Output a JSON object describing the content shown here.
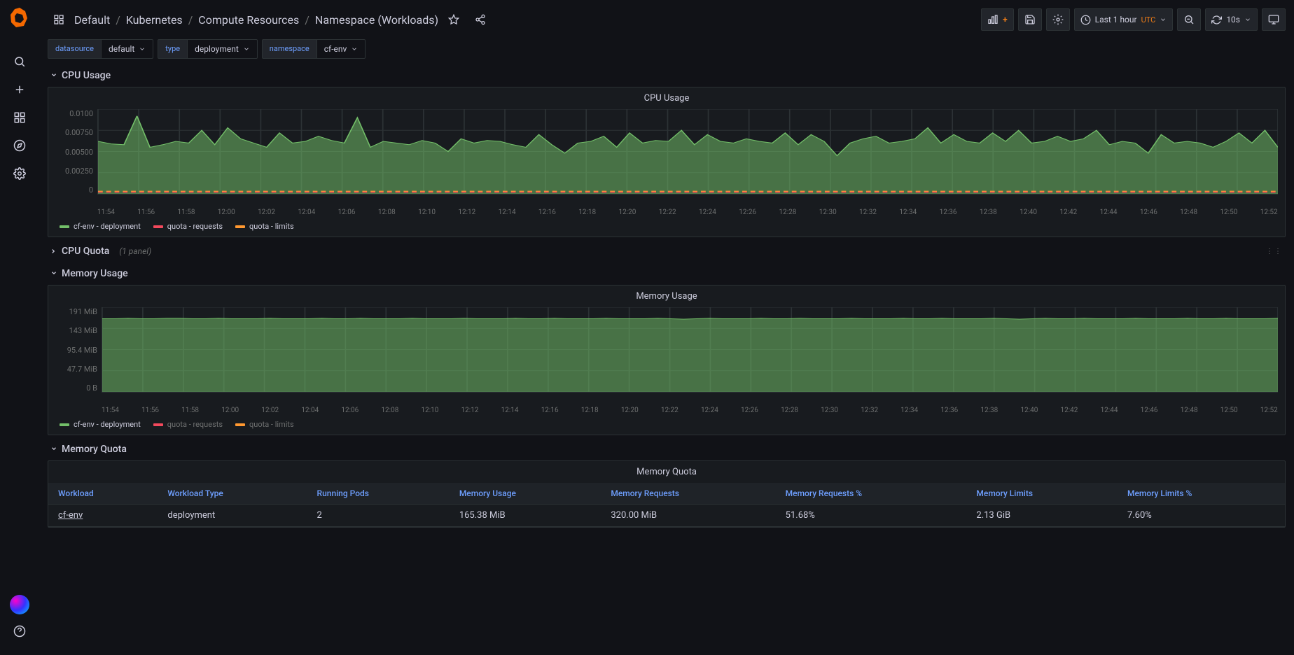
{
  "colors": {
    "background": "#111217",
    "panel_bg": "#181b1f",
    "border": "#2c3235",
    "text": "#ccccdc",
    "text_muted": "#6e7070",
    "link": "#6e9fff",
    "accent_orange": "#eb7b18",
    "series_green": "#73bf69",
    "series_green_fill": "#73bf6988",
    "series_red": "#f2495c",
    "series_orange": "#ff9830"
  },
  "breadcrumb": {
    "parts": [
      "Default",
      "Kubernetes",
      "Compute Resources",
      "Namespace (Workloads)"
    ]
  },
  "toolbar": {
    "time_range": "Last 1 hour",
    "time_zone": "UTC",
    "refresh_interval": "10s"
  },
  "variables": [
    {
      "label": "datasource",
      "value": "default"
    },
    {
      "label": "type",
      "value": "deployment"
    },
    {
      "label": "namespace",
      "value": "cf-env"
    }
  ],
  "sections": {
    "cpu_usage": {
      "title": "CPU Usage",
      "expanded": true
    },
    "cpu_quota": {
      "title": "CPU Quota",
      "expanded": false,
      "meta": "(1 panel)"
    },
    "memory_usage": {
      "title": "Memory Usage",
      "expanded": true
    },
    "memory_quota": {
      "title": "Memory Quota",
      "expanded": true
    }
  },
  "cpu_chart": {
    "title": "CPU Usage",
    "type": "area",
    "y_ticks": [
      "0.0100",
      "0.00750",
      "0.00500",
      "0.00250",
      "0"
    ],
    "ylim": [
      0,
      0.01
    ],
    "x_ticks": [
      "11:54",
      "11:56",
      "11:58",
      "12:00",
      "12:02",
      "12:04",
      "12:06",
      "12:08",
      "12:10",
      "12:12",
      "12:14",
      "12:16",
      "12:18",
      "12:20",
      "12:22",
      "12:24",
      "12:26",
      "12:28",
      "12:30",
      "12:32",
      "12:34",
      "12:36",
      "12:38",
      "12:40",
      "12:42",
      "12:44",
      "12:46",
      "12:48",
      "12:50",
      "12:52"
    ],
    "series": [
      {
        "name": "cf-env - deployment",
        "color": "#73bf69",
        "fill": "#73bf6988",
        "values": [
          0.0062,
          0.0059,
          0.0058,
          0.0092,
          0.0055,
          0.0058,
          0.0062,
          0.006,
          0.0075,
          0.0058,
          0.0078,
          0.0065,
          0.006,
          0.0055,
          0.0072,
          0.006,
          0.0062,
          0.0068,
          0.0063,
          0.006,
          0.009,
          0.0055,
          0.0062,
          0.006,
          0.0058,
          0.0063,
          0.006,
          0.005,
          0.0065,
          0.006,
          0.0063,
          0.0062,
          0.0058,
          0.0055,
          0.007,
          0.0058,
          0.0048,
          0.006,
          0.0062,
          0.0068,
          0.0055,
          0.0072,
          0.006,
          0.0063,
          0.0062,
          0.0075,
          0.0058,
          0.007,
          0.0062,
          0.006,
          0.0065,
          0.0062,
          0.006,
          0.0072,
          0.0058,
          0.007,
          0.0062,
          0.0045,
          0.006,
          0.0065,
          0.0068,
          0.006,
          0.0062,
          0.0065,
          0.0078,
          0.006,
          0.007,
          0.0062,
          0.006,
          0.0072,
          0.0062,
          0.0075,
          0.006,
          0.0062,
          0.0068,
          0.0062,
          0.0065,
          0.0075,
          0.0058,
          0.0062,
          0.006,
          0.0048,
          0.007,
          0.006,
          0.0062,
          0.006,
          0.0055,
          0.0062,
          0.0072,
          0.006,
          0.0075,
          0.0055
        ]
      }
    ],
    "quota_requests": {
      "name": "quota - requests",
      "color": "#f2495c",
      "value": 0.0002
    },
    "quota_limits": {
      "name": "quota - limits",
      "color": "#ff9830",
      "value": 0.0003
    },
    "legend": [
      {
        "label": "cf-env - deployment",
        "color": "#73bf69",
        "muted": false
      },
      {
        "label": "quota - requests",
        "color": "#f2495c",
        "muted": false
      },
      {
        "label": "quota - limits",
        "color": "#ff9830",
        "muted": false
      }
    ]
  },
  "memory_chart": {
    "title": "Memory Usage",
    "type": "area",
    "y_ticks": [
      "191 MiB",
      "143 MiB",
      "95.4 MiB",
      "47.7 MiB",
      "0 B"
    ],
    "ylim": [
      0,
      191
    ],
    "x_ticks": [
      "11:54",
      "11:56",
      "11:58",
      "12:00",
      "12:02",
      "12:04",
      "12:06",
      "12:08",
      "12:10",
      "12:12",
      "12:14",
      "12:16",
      "12:18",
      "12:20",
      "12:22",
      "12:24",
      "12:26",
      "12:28",
      "12:30",
      "12:32",
      "12:34",
      "12:36",
      "12:38",
      "12:40",
      "12:42",
      "12:44",
      "12:46",
      "12:48",
      "12:50",
      "12:52"
    ],
    "series": [
      {
        "name": "cf-env - deployment",
        "color": "#73bf69",
        "fill": "#73bf6988",
        "values": [
          165,
          165,
          166,
          165,
          165,
          166,
          166,
          165,
          165,
          166,
          165,
          165,
          165,
          166,
          165,
          165,
          165,
          166,
          165,
          165,
          166,
          165,
          165,
          165,
          166,
          165,
          165,
          165,
          166,
          165,
          165,
          165,
          166,
          165,
          165,
          166,
          165,
          165,
          165,
          166,
          165,
          165,
          165,
          166,
          165,
          164,
          165,
          166,
          165,
          165,
          165,
          166,
          165,
          165,
          166,
          165,
          165,
          165,
          166,
          165,
          165,
          165,
          166,
          165,
          165,
          166,
          165,
          165,
          165,
          166,
          165,
          164,
          165,
          166,
          165,
          165,
          166,
          165,
          165,
          165,
          166,
          165,
          165,
          165,
          166,
          165,
          165,
          166,
          165,
          165,
          165,
          166
        ]
      }
    ],
    "legend": [
      {
        "label": "cf-env - deployment",
        "color": "#73bf69",
        "muted": false
      },
      {
        "label": "quota - requests",
        "color": "#f2495c",
        "muted": true
      },
      {
        "label": "quota - limits",
        "color": "#ff9830",
        "muted": true
      }
    ]
  },
  "memory_quota_table": {
    "title": "Memory Quota",
    "columns": [
      "Workload",
      "Workload Type",
      "Running Pods",
      "Memory Usage",
      "Memory Requests",
      "Memory Requests %",
      "Memory Limits",
      "Memory Limits %"
    ],
    "rows": [
      [
        "cf-env",
        "deployment",
        "2",
        "165.38 MiB",
        "320.00 MiB",
        "51.68%",
        "2.13 GiB",
        "7.60%"
      ]
    ]
  }
}
